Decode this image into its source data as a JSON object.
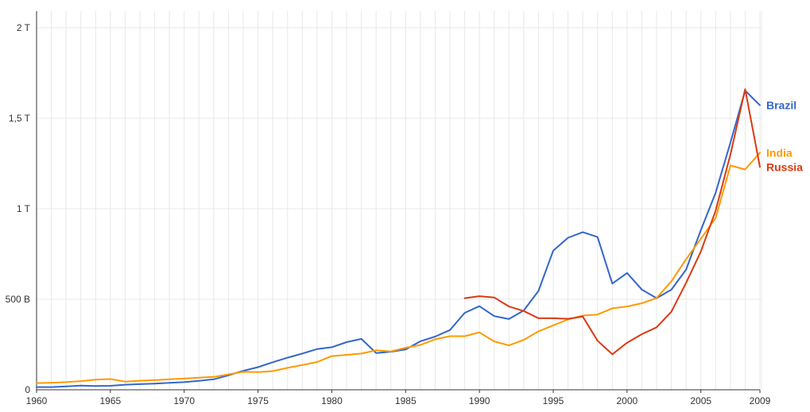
{
  "chart_data": {
    "type": "line",
    "x": [
      1960,
      1961,
      1962,
      1963,
      1964,
      1965,
      1966,
      1967,
      1968,
      1969,
      1970,
      1971,
      1972,
      1973,
      1974,
      1975,
      1976,
      1977,
      1978,
      1979,
      1980,
      1981,
      1982,
      1983,
      1984,
      1985,
      1986,
      1987,
      1988,
      1989,
      1990,
      1991,
      1992,
      1993,
      1994,
      1995,
      1996,
      1997,
      1998,
      1999,
      2000,
      2001,
      2002,
      2003,
      2004,
      2005,
      2006,
      2007,
      2008,
      2009
    ],
    "xlim": [
      1960,
      2009
    ],
    "ylim": [
      0,
      2000000000000
    ],
    "y_ticks": [
      0,
      500000000000,
      1000000000000,
      1500000000000,
      2000000000000
    ],
    "y_tick_labels": [
      "0",
      "500 B",
      "1 T",
      "1,5 T",
      "2 T"
    ],
    "x_ticks": [
      1960,
      1965,
      1970,
      1975,
      1980,
      1985,
      1990,
      1995,
      2000,
      2005,
      2009
    ],
    "x_tick_labels": [
      "1960",
      "1965",
      "1970",
      "1975",
      "1980",
      "1985",
      "1990",
      "1995",
      "2000",
      "2005",
      "2009"
    ],
    "grid": true,
    "title": "",
    "xlabel": "",
    "ylabel": "",
    "series": [
      {
        "name": "Brazil",
        "color": "#3366cc",
        "values": [
          15000000000,
          15000000000,
          19000000000,
          23000000000,
          21000000000,
          22000000000,
          28000000000,
          31000000000,
          34000000000,
          38000000000,
          42000000000,
          49000000000,
          58000000000,
          80000000000,
          105000000000,
          125000000000,
          152000000000,
          177000000000,
          200000000000,
          225000000000,
          235000000000,
          263000000000,
          281000000000,
          203000000000,
          210000000000,
          223000000000,
          268000000000,
          294000000000,
          330000000000,
          425000000000,
          462000000000,
          407000000000,
          391000000000,
          438000000000,
          546000000000,
          769000000000,
          840000000000,
          871000000000,
          844000000000,
          587000000000,
          645000000000,
          554000000000,
          506000000000,
          553000000000,
          664000000000,
          882000000000,
          1089000000000,
          1366000000000,
          1653000000000,
          1572000000000
        ]
      },
      {
        "name": "India",
        "color": "#ff9900",
        "values": [
          37000000000,
          39000000000,
          42000000000,
          48000000000,
          56000000000,
          59000000000,
          45000000000,
          50000000000,
          53000000000,
          58000000000,
          62000000000,
          67000000000,
          71000000000,
          85000000000,
          99000000000,
          98000000000,
          103000000000,
          121000000000,
          137000000000,
          153000000000,
          186000000000,
          193000000000,
          200000000000,
          218000000000,
          212000000000,
          232000000000,
          248000000000,
          279000000000,
          296000000000,
          296000000000,
          317000000000,
          267000000000,
          245000000000,
          276000000000,
          323000000000,
          356000000000,
          388000000000,
          410000000000,
          416000000000,
          450000000000,
          460000000000,
          478000000000,
          507000000000,
          599000000000,
          721000000000,
          834000000000,
          949000000000,
          1239000000000,
          1217000000000,
          1310000000000
        ]
      },
      {
        "name": "Russia",
        "color": "#dc3912",
        "values": [
          null,
          null,
          null,
          null,
          null,
          null,
          null,
          null,
          null,
          null,
          null,
          null,
          null,
          null,
          null,
          null,
          null,
          null,
          null,
          null,
          null,
          null,
          null,
          null,
          null,
          null,
          null,
          null,
          null,
          506000000000,
          517000000000,
          510000000000,
          460000000000,
          435000000000,
          395000000000,
          395000000000,
          392000000000,
          405000000000,
          271000000000,
          196000000000,
          260000000000,
          307000000000,
          345000000000,
          431000000000,
          591000000000,
          764000000000,
          990000000000,
          1300000000000,
          1661000000000,
          1231000000000
        ]
      }
    ]
  }
}
